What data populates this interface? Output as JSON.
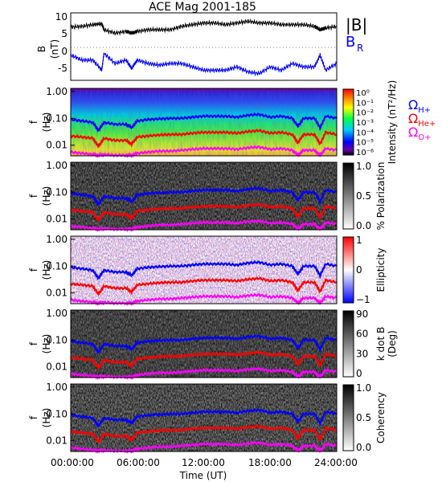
{
  "title": "ACE Mag 2001-185",
  "time_label": "Time (UT)",
  "time_ticks": [
    "00:00:00",
    "06:00:00",
    "12:00:00",
    "18:00:00",
    "24:00:00"
  ],
  "freq_ticks": [
    "1.00",
    "0.10",
    "0.01"
  ],
  "freq_label_f": "f",
  "freq_label_hz": "(Hz)",
  "colors": {
    "B_total": "#000000",
    "B_R": "#0000ff",
    "omega_H": "#0000ff",
    "omega_He": "#ff0000",
    "omega_O": "#ff00ff"
  },
  "chart_data": [
    {
      "type": "line",
      "ylabel_top": "B",
      "ylabel_bottom": "(nT)",
      "ylim": [
        -9,
        11
      ],
      "yticks": [
        "10",
        "5",
        "0",
        "-5"
      ],
      "xlim": [
        0,
        24
      ],
      "legend": [
        {
          "name": "|B|",
          "color": "#000000"
        },
        {
          "name": "B",
          "sub": "R",
          "color": "#0000ff"
        }
      ],
      "series": [
        {
          "name": "|B|",
          "x": [
            0,
            1,
            2,
            2.8,
            3,
            4,
            5,
            5.5,
            6,
            7,
            8,
            9,
            10,
            11,
            12,
            13,
            14,
            15,
            16,
            17,
            18,
            19,
            20,
            21,
            22,
            22.5,
            23,
            24
          ],
          "values": [
            6.8,
            7,
            7.5,
            7.8,
            6,
            5,
            5.5,
            5,
            5.5,
            6,
            6,
            6,
            7,
            7.5,
            8,
            8,
            7.5,
            8,
            8.5,
            8,
            8,
            7.5,
            7.5,
            7.5,
            7,
            6,
            6.5,
            7
          ]
        },
        {
          "name": "B_R",
          "x": [
            0,
            1,
            2,
            2.8,
            3,
            4,
            5,
            5.5,
            6,
            7,
            8,
            9,
            10,
            11,
            12,
            13,
            14,
            15,
            16,
            17,
            18,
            19,
            20,
            21,
            22,
            22.5,
            23,
            24
          ],
          "values": [
            -1.5,
            -3,
            -3,
            -6,
            -1,
            -4,
            -3,
            -5.5,
            -3,
            -4,
            -4.5,
            -4,
            -4,
            -5,
            -6,
            -6,
            -6,
            -5,
            -6.5,
            -7,
            -5,
            -6,
            -4,
            -5,
            -5,
            -1.5,
            -6,
            -4
          ]
        }
      ]
    },
    {
      "type": "heatmap",
      "name": "Intensity",
      "colorbar_label": "Intensity (nT²/Hz)",
      "colorbar_ticks": [
        "10⁰",
        "10⁻¹",
        "10⁻²",
        "10⁻³",
        "10⁻⁴",
        "10⁻⁵",
        "10⁻⁶"
      ],
      "legend": [
        "ΩH+",
        "ΩHe+",
        "ΩO+"
      ]
    },
    {
      "type": "heatmap",
      "name": "% Polarization",
      "colorbar_label": "% Polarization",
      "colorbar_ticks": [
        "1.0",
        "0.5",
        "0.0"
      ]
    },
    {
      "type": "heatmap",
      "name": "Ellipticity",
      "colorbar_label": "Ellipticity",
      "colorbar_ticks": [
        "1",
        "0",
        "−1"
      ]
    },
    {
      "type": "heatmap",
      "name": "k dot B",
      "colorbar_label_1": "k dot B",
      "colorbar_label_2": "(Deg)",
      "colorbar_ticks": [
        "90",
        "60",
        "30",
        "0"
      ]
    },
    {
      "type": "heatmap",
      "name": "Coherency",
      "colorbar_label": "Coherency",
      "colorbar_ticks": [
        "1.0",
        "0.5",
        "0.0"
      ]
    },
    {
      "type": "line",
      "name": "gyrofrequencies",
      "xlim": [
        0,
        24
      ],
      "ylog": true,
      "ylim": [
        0.004,
        1.3
      ],
      "x": [
        0,
        1,
        2,
        2.5,
        3,
        4,
        5,
        5.5,
        6,
        7,
        8,
        9,
        10,
        11,
        12,
        13,
        14,
        15,
        16,
        17,
        18,
        19,
        20,
        20.5,
        21,
        22,
        22.5,
        23,
        24
      ],
      "series": [
        {
          "name": "ΩH+",
          "values": [
            0.09,
            0.08,
            0.07,
            0.035,
            0.07,
            0.06,
            0.06,
            0.045,
            0.08,
            0.09,
            0.095,
            0.1,
            0.1,
            0.11,
            0.12,
            0.12,
            0.12,
            0.11,
            0.13,
            0.14,
            0.11,
            0.12,
            0.1,
            0.05,
            0.1,
            0.1,
            0.045,
            0.12,
            0.1
          ]
        },
        {
          "name": "ΩHe+",
          "values": [
            0.022,
            0.02,
            0.018,
            0.009,
            0.018,
            0.015,
            0.015,
            0.011,
            0.02,
            0.022,
            0.024,
            0.025,
            0.025,
            0.028,
            0.03,
            0.03,
            0.03,
            0.028,
            0.032,
            0.035,
            0.028,
            0.03,
            0.025,
            0.012,
            0.025,
            0.025,
            0.011,
            0.03,
            0.025
          ]
        },
        {
          "name": "ΩO+",
          "values": [
            0.0055,
            0.005,
            0.0045,
            0.0042,
            0.0045,
            0.0042,
            0.0042,
            0.0042,
            0.005,
            0.0055,
            0.006,
            0.006,
            0.0065,
            0.007,
            0.0075,
            0.0075,
            0.0075,
            0.007,
            0.008,
            0.0085,
            0.007,
            0.0075,
            0.0065,
            0.0042,
            0.0065,
            0.0065,
            0.0042,
            0.0075,
            0.0065
          ]
        }
      ]
    }
  ]
}
